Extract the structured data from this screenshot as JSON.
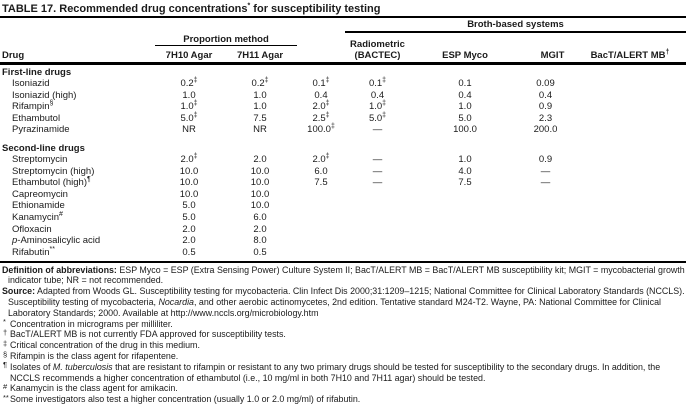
{
  "title": {
    "pre": "TABLE 17. Recommended drug concentrations",
    "sup": "*",
    "post": " for susceptibility testing"
  },
  "header": {
    "drug": "Drug",
    "proportion_group": "Proportion method",
    "broth_group": "Broth-based systems",
    "columns": {
      "c7h10": "7H10 Agar",
      "c7h11": "7H11 Agar",
      "bactec_line1": "Radiometric",
      "bactec_line2": "(BACTEC)",
      "esp": "ESP Myco",
      "mgit": "MGIT",
      "bact_alert": "BacT/ALERT MB",
      "bact_alert_sup": "†"
    }
  },
  "table": {
    "sections": [
      {
        "label": "First-line drugs",
        "rows": [
          {
            "drug": "Isoniazid",
            "values": [
              "0.2‡",
              "0.2‡",
              "0.1‡",
              "0.1‡",
              "0.1",
              "0.09"
            ]
          },
          {
            "drug": "Isoniazid (high)",
            "values": [
              "1.0",
              "1.0",
              "0.4",
              "0.4",
              "0.4",
              "0.4"
            ]
          },
          {
            "drug": "Rifampin",
            "drug_sup": "§",
            "values": [
              "1.0‡",
              "1.0",
              "2.0‡",
              "1.0‡",
              "1.0",
              "0.9"
            ]
          },
          {
            "drug": "Ethambutol",
            "values": [
              "5.0‡",
              "7.5",
              "2.5‡",
              "5.0‡",
              "5.0",
              "2.3"
            ]
          },
          {
            "drug": "Pyrazinamide",
            "values": [
              "NR",
              "NR",
              "100.0‡",
              "—",
              "100.0",
              "200.0"
            ]
          }
        ]
      },
      {
        "label": "Second-line drugs",
        "rows": [
          {
            "drug": "Streptomycin",
            "values": [
              "2.0‡",
              "2.0",
              "2.0‡",
              "—",
              "1.0",
              "0.9"
            ]
          },
          {
            "drug": "Streptomycin (high)",
            "values": [
              "10.0",
              "10.0",
              "6.0",
              "—",
              "4.0",
              "—"
            ]
          },
          {
            "drug": "Ethambutol (high)",
            "drug_sup": "¶",
            "values": [
              "10.0",
              "10.0",
              "7.5",
              "—",
              "7.5",
              "—"
            ]
          },
          {
            "drug": "Capreomycin",
            "values": [
              "10.0",
              "10.0",
              "",
              "",
              "",
              ""
            ]
          },
          {
            "drug": "Ethionamide",
            "values": [
              "5.0",
              "10.0",
              "",
              "",
              "",
              ""
            ]
          },
          {
            "drug": "Kanamycin",
            "drug_sup": "#",
            "values": [
              "5.0",
              "6.0",
              "",
              "",
              "",
              ""
            ]
          },
          {
            "drug": "Ofloxacin",
            "values": [
              "2.0",
              "2.0",
              "",
              "",
              "",
              ""
            ]
          },
          {
            "drug": "-Aminosalicylic acid",
            "drug_i": "p",
            "values": [
              "2.0",
              "8.0",
              "",
              "",
              "",
              ""
            ]
          },
          {
            "drug": "Rifabutin",
            "drug_sup": "**",
            "values": [
              "0.5",
              "0.5",
              "",
              "",
              "",
              ""
            ]
          }
        ]
      }
    ]
  },
  "footnotes": {
    "definition": {
      "label": "Definition of abbreviations:",
      "text": " ESP Myco = ESP (Extra Sensing Power) Culture System II; BacT/ALERT MB = BacT/ALERT MB susceptibility kit; MGIT = mycobacterial growth indicator tube; NR = not recommended."
    },
    "source": {
      "label": "Source:",
      "text_pre": " Adapted from Woods GL. Susceptibility testing for mycobacteria. Clin Infect Dis 2000;31:1209–1215; National Committee for Clinical Laboratory Standards (NCCLS). Susceptibility testing of mycobacteria, ",
      "italic": "Nocardia",
      "text_post": ", and other aerobic actinomycetes, 2nd edition. Tentative standard M24-T2. Wayne, PA: National Committee for Clinical Laboratory Standards; 2000. Available at http://www.nccls.org/microbiology.htm"
    },
    "symbols": [
      {
        "marker": "*",
        "text": "Concentration in micrograms per milliliter."
      },
      {
        "marker": "†",
        "text": "BacT/ALERT MB is not currently FDA approved for susceptibility tests."
      },
      {
        "marker": "‡",
        "text": "Critical concentration of the drug in this medium."
      },
      {
        "marker": "§",
        "text": "Rifampin is the class agent for rifapentene."
      },
      {
        "marker": "¶",
        "pre": "Isolates of ",
        "italic": "M. tuberculosis",
        "post": " that are resistant to rifampin or resistant to any two primary drugs should be tested for susceptibility to the secondary drugs. In addition, the NCCLS recommends a higher concentration of ethambutol (i.e., 10 mg/ml in both 7H10 and 7H11 agar) should be tested."
      },
      {
        "marker": "#",
        "text": "Kanamycin is the class agent for amikacin."
      },
      {
        "marker": "**",
        "text": "Some investigators also test a higher concentration (usually 1.0 or 2.0 mg/ml) of rifabutin."
      }
    ]
  },
  "colors": {
    "text": "#1b1b1b",
    "rule": "#000000",
    "background": "#ffffff"
  }
}
